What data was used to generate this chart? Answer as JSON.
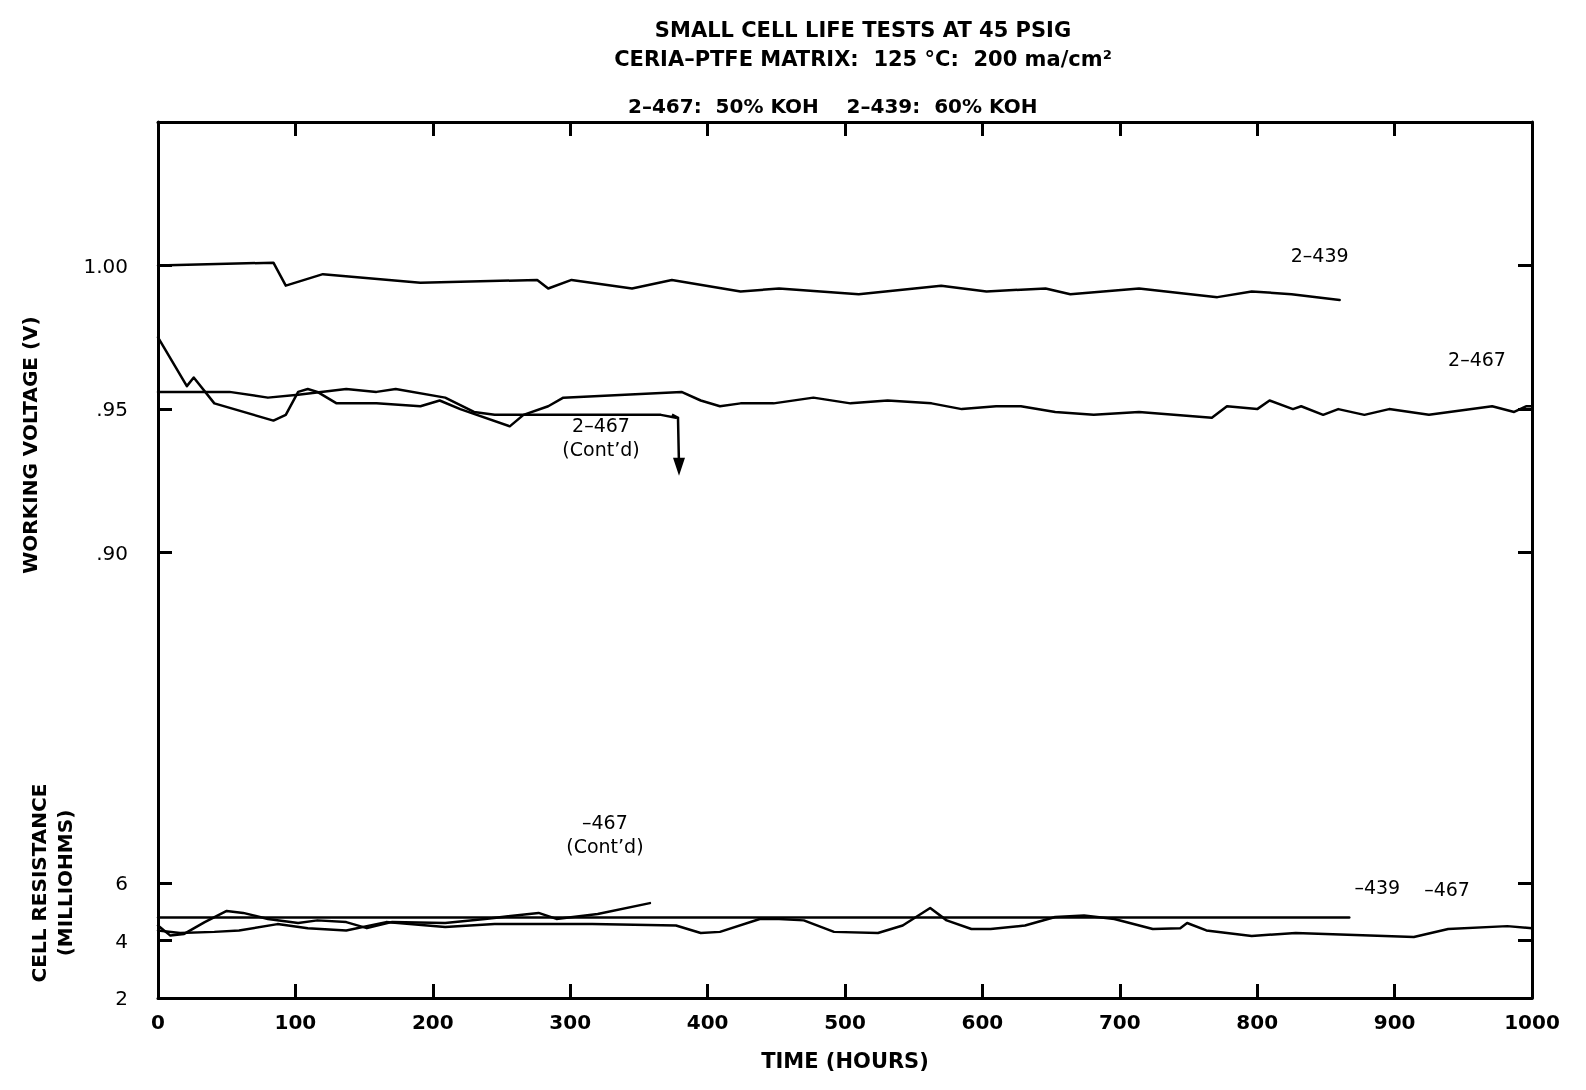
{
  "chart_data": [
    {
      "type": "line",
      "title": "SMALL CELL LIFE TESTS AT 45 PSIG",
      "subtitle": "CERIA–PTFE MATRIX:  125 °C:  200 ma/cm²",
      "annotations": [
        "2–467:  50% KOH    2–439:  60% KOH"
      ],
      "ylabel": "WORKING VOLTAGE (V)",
      "xlim": [
        0,
        1000
      ],
      "xticks": [
        0,
        100,
        200,
        300,
        400,
        500,
        600,
        700,
        800,
        900,
        1000
      ],
      "ylim": [
        0.825,
        1.05
      ],
      "yticks": [
        {
          "value": 1,
          "label": "1.00"
        },
        {
          "value": 0.95,
          "label": ".95"
        },
        {
          "value": 0.9,
          "label": ".90"
        }
      ],
      "tick_labels": "y",
      "marker": "none",
      "line_style": "solid",
      "series": [
        {
          "name": "2–439",
          "color": "#000000",
          "x": [
            0,
            84,
            93,
            120,
            191,
            276,
            284,
            301,
            345,
            374,
            424,
            452,
            510,
            570,
            603,
            646,
            664,
            714,
            771,
            796,
            825,
            860
          ],
          "values": [
            1.0,
            1.001,
            0.993,
            0.997,
            0.994,
            0.995,
            0.992,
            0.995,
            0.992,
            0.995,
            0.991,
            0.992,
            0.99,
            0.993,
            0.991,
            0.992,
            0.99,
            0.992,
            0.989,
            0.991,
            0.99,
            0.988
          ]
        },
        {
          "name": "2–467",
          "color": "#000000",
          "x": [
            0,
            21,
            26,
            41,
            84,
            93,
            102,
            109,
            116,
            130,
            159,
            191,
            205,
            220,
            256,
            266,
            284,
            295,
            381,
            395,
            409,
            424,
            448,
            477,
            504,
            531,
            563,
            585,
            610,
            628,
            653,
            681,
            714,
            767,
            778,
            800,
            809,
            826,
            832,
            848,
            859,
            878,
            896,
            925,
            971,
            987,
            996,
            1000
          ],
          "values": [
            0.975,
            0.958,
            0.961,
            0.952,
            0.946,
            0.948,
            0.956,
            0.957,
            0.956,
            0.952,
            0.952,
            0.951,
            0.953,
            0.95,
            0.944,
            0.948,
            0.951,
            0.954,
            0.956,
            0.953,
            0.951,
            0.952,
            0.952,
            0.954,
            0.952,
            0.953,
            0.952,
            0.95,
            0.951,
            0.951,
            0.949,
            0.948,
            0.949,
            0.947,
            0.951,
            0.95,
            0.953,
            0.95,
            0.951,
            0.948,
            0.95,
            0.948,
            0.95,
            0.948,
            0.951,
            0.949,
            0.951,
            0.951
          ]
        },
        {
          "name": "2–467\n(Cont’d)",
          "color": "#000000",
          "x": [
            0,
            52,
            80,
            102,
            137,
            159,
            173,
            209,
            230,
            245,
            366,
            377
          ],
          "values": [
            0.956,
            0.956,
            0.954,
            0.955,
            0.957,
            0.956,
            0.957,
            0.954,
            0.949,
            0.948,
            0.948,
            0.947
          ]
        }
      ]
    },
    {
      "type": "line",
      "xlabel": "TIME (HOURS)",
      "ylabel": "CELL RESISTANCE\n(MILLIOHMS)",
      "xlim": [
        0,
        1000
      ],
      "xticks": [
        0,
        100,
        200,
        300,
        400,
        500,
        600,
        700,
        800,
        900,
        1000
      ],
      "ylim": [
        2,
        10
      ],
      "yticks": [
        2,
        4,
        6
      ],
      "marker": "none",
      "line_style": "solid",
      "series": [
        {
          "name": "–439",
          "color": "#000000",
          "x": [
            0,
            867
          ],
          "values": [
            4.8,
            4.8
          ]
        },
        {
          "name": "–467",
          "color": "#000000",
          "x": [
            0,
            16,
            41,
            59,
            87,
            109,
            137,
            166,
            209,
            245,
            316,
            377,
            395,
            409,
            438,
            452,
            470,
            492,
            524,
            542,
            562,
            574,
            592,
            606,
            631,
            653,
            674,
            696,
            724,
            744,
            749,
            763,
            796,
            828,
            882,
            914,
            939,
            982,
            1000
          ],
          "values": [
            4.35,
            4.26,
            4.3,
            4.35,
            4.57,
            4.43,
            4.35,
            4.64,
            4.47,
            4.57,
            4.57,
            4.52,
            4.26,
            4.3,
            4.75,
            4.75,
            4.7,
            4.3,
            4.26,
            4.52,
            5.13,
            4.7,
            4.4,
            4.4,
            4.52,
            4.82,
            4.87,
            4.75,
            4.4,
            4.43,
            4.61,
            4.35,
            4.16,
            4.26,
            4.17,
            4.12,
            4.4,
            4.5,
            4.43
          ]
        },
        {
          "name": "–467\n(Cont’d)",
          "color": "#000000",
          "x": [
            0,
            9,
            19,
            34,
            50,
            62,
            80,
            102,
            116,
            137,
            152,
            170,
            209,
            238,
            277,
            290,
            320,
            358
          ],
          "values": [
            4.52,
            4.17,
            4.23,
            4.64,
            5.03,
            4.96,
            4.75,
            4.61,
            4.7,
            4.64,
            4.43,
            4.64,
            4.61,
            4.75,
            4.96,
            4.75,
            4.92,
            5.3
          ]
        }
      ]
    }
  ]
}
